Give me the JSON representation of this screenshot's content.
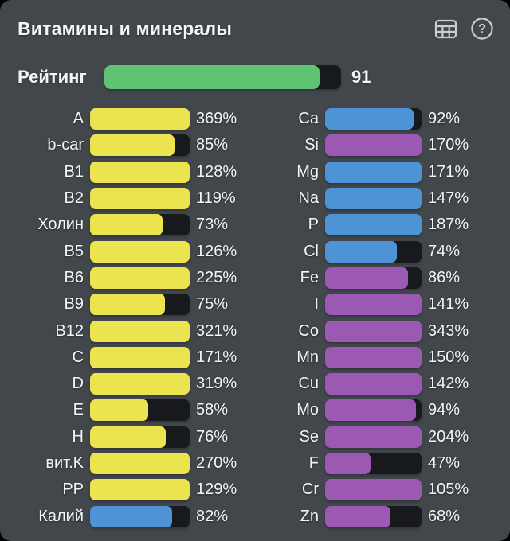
{
  "header": {
    "title": "Витамины и минералы"
  },
  "rating": {
    "label": "Рейтинг",
    "value": "91",
    "percent": 91
  },
  "colors": {
    "page_background": "#000000",
    "panel": "#42474c",
    "track": "#17191c",
    "yellow": "#ece44e",
    "blue": "#4e93d5",
    "purple": "#9c59b4",
    "green": "#5ec473",
    "text": "#f3f5f6",
    "icon": "#c9ced2"
  },
  "chart_data": {
    "type": "bar",
    "title": "Витамины и минералы",
    "unit": "%",
    "orientation": "horizontal",
    "fill_rule": "fill = min(value, 100) percent of track",
    "columns": [
      {
        "name": "vitamins",
        "items": [
          {
            "label": "A",
            "value": 369,
            "display": "369%",
            "color": "yellow"
          },
          {
            "label": "b-car",
            "value": 85,
            "display": "85%",
            "color": "yellow"
          },
          {
            "label": "B1",
            "value": 128,
            "display": "128%",
            "color": "yellow"
          },
          {
            "label": "B2",
            "value": 119,
            "display": "119%",
            "color": "yellow"
          },
          {
            "label": "Холин",
            "value": 73,
            "display": "73%",
            "color": "yellow"
          },
          {
            "label": "B5",
            "value": 126,
            "display": "126%",
            "color": "yellow"
          },
          {
            "label": "B6",
            "value": 225,
            "display": "225%",
            "color": "yellow"
          },
          {
            "label": "B9",
            "value": 75,
            "display": "75%",
            "color": "yellow"
          },
          {
            "label": "B12",
            "value": 321,
            "display": "321%",
            "color": "yellow"
          },
          {
            "label": "C",
            "value": 171,
            "display": "171%",
            "color": "yellow"
          },
          {
            "label": "D",
            "value": 319,
            "display": "319%",
            "color": "yellow"
          },
          {
            "label": "E",
            "value": 58,
            "display": "58%",
            "color": "yellow"
          },
          {
            "label": "H",
            "value": 76,
            "display": "76%",
            "color": "yellow"
          },
          {
            "label": "вит.K",
            "value": 270,
            "display": "270%",
            "color": "yellow"
          },
          {
            "label": "PP",
            "value": 129,
            "display": "129%",
            "color": "yellow"
          },
          {
            "label": "Калий",
            "value": 82,
            "display": "82%",
            "color": "blue"
          }
        ]
      },
      {
        "name": "minerals",
        "items": [
          {
            "label": "Ca",
            "value": 92,
            "display": "92%",
            "color": "blue"
          },
          {
            "label": "Si",
            "value": 170,
            "display": "170%",
            "color": "purple"
          },
          {
            "label": "Mg",
            "value": 171,
            "display": "171%",
            "color": "blue"
          },
          {
            "label": "Na",
            "value": 147,
            "display": "147%",
            "color": "blue"
          },
          {
            "label": "P",
            "value": 187,
            "display": "187%",
            "color": "blue"
          },
          {
            "label": "Cl",
            "value": 74,
            "display": "74%",
            "color": "blue"
          },
          {
            "label": "Fe",
            "value": 86,
            "display": "86%",
            "color": "purple"
          },
          {
            "label": "I",
            "value": 141,
            "display": "141%",
            "color": "purple"
          },
          {
            "label": "Co",
            "value": 343,
            "display": "343%",
            "color": "purple"
          },
          {
            "label": "Mn",
            "value": 150,
            "display": "150%",
            "color": "purple"
          },
          {
            "label": "Cu",
            "value": 142,
            "display": "142%",
            "color": "purple"
          },
          {
            "label": "Mo",
            "value": 94,
            "display": "94%",
            "color": "purple"
          },
          {
            "label": "Se",
            "value": 204,
            "display": "204%",
            "color": "purple"
          },
          {
            "label": "F",
            "value": 47,
            "display": "47%",
            "color": "purple"
          },
          {
            "label": "Cr",
            "value": 105,
            "display": "105%",
            "color": "purple"
          },
          {
            "label": "Zn",
            "value": 68,
            "display": "68%",
            "color": "purple"
          }
        ]
      }
    ]
  }
}
